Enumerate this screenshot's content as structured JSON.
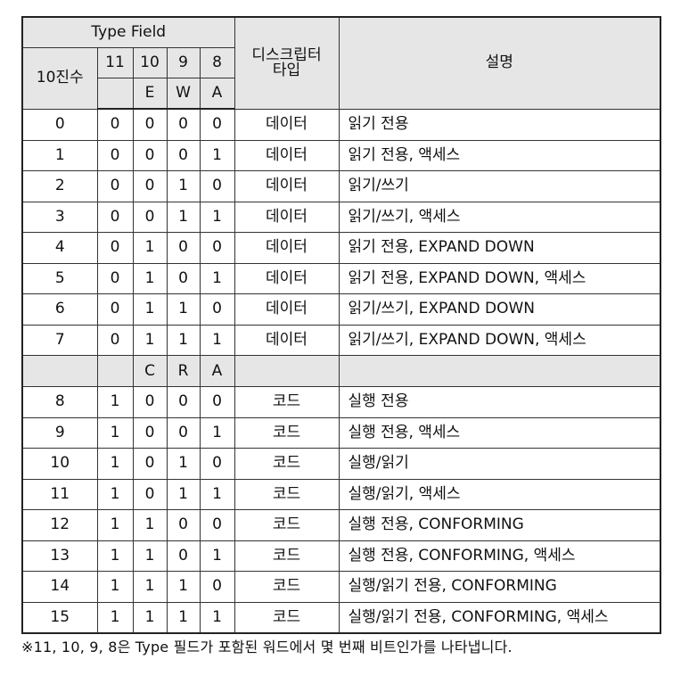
{
  "header": {
    "type_field": "Type Field",
    "decimal": "10진수",
    "bits": [
      "11",
      "10",
      "9",
      "8"
    ],
    "data_flags": [
      "E",
      "W",
      "A"
    ],
    "descriptor_type_line1": "디스크립터",
    "descriptor_type_line2": "타입",
    "description": "설명"
  },
  "code_flags": [
    "C",
    "R",
    "A"
  ],
  "data_rows": [
    {
      "dec": "0",
      "b11": "0",
      "b10": "0",
      "b9": "0",
      "b8": "0",
      "type": "데이터",
      "desc": "읽기 전용"
    },
    {
      "dec": "1",
      "b11": "0",
      "b10": "0",
      "b9": "0",
      "b8": "1",
      "type": "데이터",
      "desc": "읽기 전용, 액세스"
    },
    {
      "dec": "2",
      "b11": "0",
      "b10": "0",
      "b9": "1",
      "b8": "0",
      "type": "데이터",
      "desc": "읽기/쓰기"
    },
    {
      "dec": "3",
      "b11": "0",
      "b10": "0",
      "b9": "1",
      "b8": "1",
      "type": "데이터",
      "desc": "읽기/쓰기, 액세스"
    },
    {
      "dec": "4",
      "b11": "0",
      "b10": "1",
      "b9": "0",
      "b8": "0",
      "type": "데이터",
      "desc": "읽기 전용, EXPAND DOWN"
    },
    {
      "dec": "5",
      "b11": "0",
      "b10": "1",
      "b9": "0",
      "b8": "1",
      "type": "데이터",
      "desc": "읽기 전용, EXPAND DOWN, 액세스"
    },
    {
      "dec": "6",
      "b11": "0",
      "b10": "1",
      "b9": "1",
      "b8": "0",
      "type": "데이터",
      "desc": "읽기/쓰기, EXPAND DOWN"
    },
    {
      "dec": "7",
      "b11": "0",
      "b10": "1",
      "b9": "1",
      "b8": "1",
      "type": "데이터",
      "desc": "읽기/쓰기, EXPAND DOWN, 액세스"
    }
  ],
  "code_rows": [
    {
      "dec": "8",
      "b11": "1",
      "b10": "0",
      "b9": "0",
      "b8": "0",
      "type": "코드",
      "desc": "실행 전용"
    },
    {
      "dec": "9",
      "b11": "1",
      "b10": "0",
      "b9": "0",
      "b8": "1",
      "type": "코드",
      "desc": "실행 전용, 액세스"
    },
    {
      "dec": "10",
      "b11": "1",
      "b10": "0",
      "b9": "1",
      "b8": "0",
      "type": "코드",
      "desc": "실행/읽기"
    },
    {
      "dec": "11",
      "b11": "1",
      "b10": "0",
      "b9": "1",
      "b8": "1",
      "type": "코드",
      "desc": "실행/읽기, 액세스"
    },
    {
      "dec": "12",
      "b11": "1",
      "b10": "1",
      "b9": "0",
      "b8": "0",
      "type": "코드",
      "desc": "실행 전용, CONFORMING"
    },
    {
      "dec": "13",
      "b11": "1",
      "b10": "1",
      "b9": "0",
      "b8": "1",
      "type": "코드",
      "desc": "실행 전용, CONFORMING, 액세스"
    },
    {
      "dec": "14",
      "b11": "1",
      "b10": "1",
      "b9": "1",
      "b8": "0",
      "type": "코드",
      "desc": "실행/읽기 전용, CONFORMING"
    },
    {
      "dec": "15",
      "b11": "1",
      "b10": "1",
      "b9": "1",
      "b8": "1",
      "type": "코드",
      "desc": "실행/읽기 전용, CONFORMING, 액세스"
    }
  ],
  "footnote": "※11, 10, 9, 8은 Type 필드가 포함된 워드에서 몇 번째 비트인가를 나타냅니다."
}
